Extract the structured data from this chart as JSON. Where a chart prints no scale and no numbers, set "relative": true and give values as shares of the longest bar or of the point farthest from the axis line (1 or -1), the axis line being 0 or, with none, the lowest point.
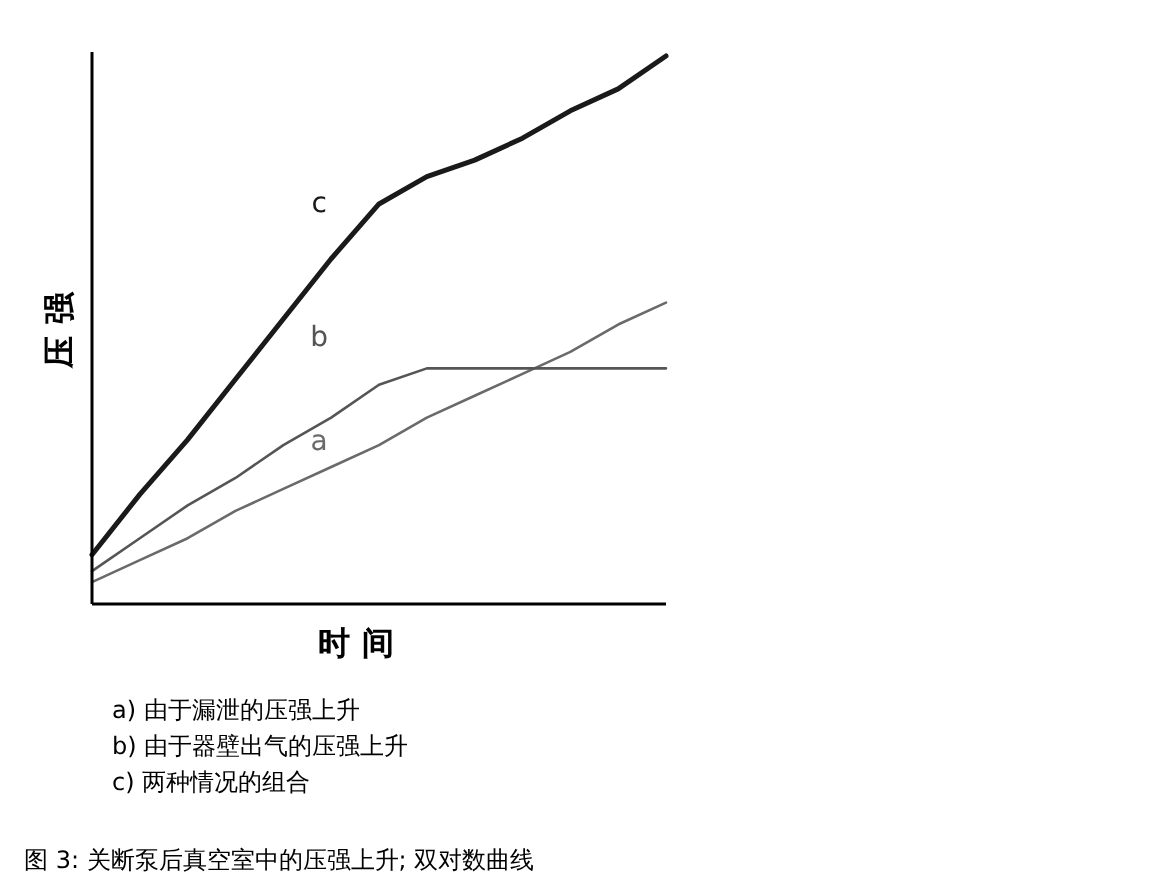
{
  "chart_data": {
    "type": "line",
    "relative": true,
    "xlabel": "时 间",
    "ylabel": "压 强",
    "categories": [
      null,
      null,
      null,
      null,
      null,
      null,
      null,
      null,
      null,
      null,
      null,
      null,
      null
    ],
    "series": [
      {
        "name": "a",
        "color": "#6a6a6a",
        "values": [
          0.04,
          0.08,
          0.12,
          0.17,
          0.21,
          0.25,
          0.29,
          0.34,
          0.38,
          0.42,
          0.46,
          0.51,
          0.55
        ]
      },
      {
        "name": "b",
        "color": "#555555",
        "values": [
          0.06,
          0.12,
          0.18,
          0.23,
          0.29,
          0.34,
          0.4,
          0.43,
          0.43,
          0.43,
          0.43,
          0.43,
          0.43
        ]
      },
      {
        "name": "c",
        "color": "#1a1a1a",
        "values": [
          0.09,
          0.2,
          0.3,
          0.41,
          0.52,
          0.63,
          0.73,
          0.78,
          0.81,
          0.85,
          0.9,
          0.94,
          1.0
        ]
      }
    ],
    "annotations": [
      "a) 由于漏泄的压强上升",
      "b) 由于器壁出气的压强上升",
      "c) 两种情况的组合",
      "图 3: 关断泵后真空室中的压强上升; 双对数曲线"
    ],
    "marker": "none",
    "line_style": "solid"
  }
}
